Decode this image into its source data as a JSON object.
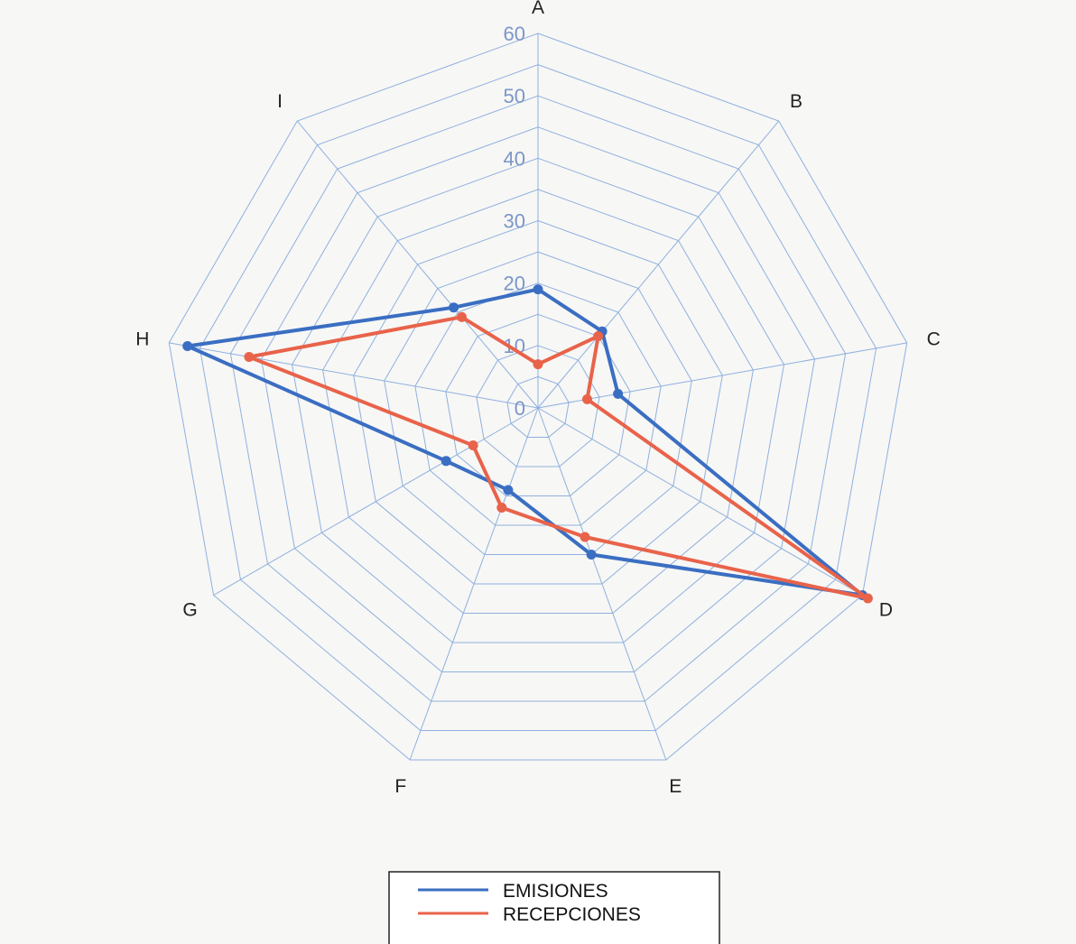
{
  "chart_data": {
    "type": "radar",
    "categories": [
      "A",
      "B",
      "C",
      "D",
      "E",
      "F",
      "G",
      "H",
      "I"
    ],
    "rlim": [
      0,
      60
    ],
    "rticks": [
      "0",
      "10",
      "20",
      "30",
      "40",
      "50",
      "60"
    ],
    "grid": true,
    "legend_position": "bottom-center",
    "series": [
      {
        "name": "EMISIONES",
        "color": "#3a6ec2",
        "values": [
          19,
          16,
          13,
          60,
          25,
          14,
          17,
          57,
          21
        ]
      },
      {
        "name": "RECEPCIONES",
        "color": "#e8634a",
        "values": [
          7,
          15,
          8,
          61,
          22,
          17,
          12,
          47,
          19
        ]
      }
    ]
  }
}
